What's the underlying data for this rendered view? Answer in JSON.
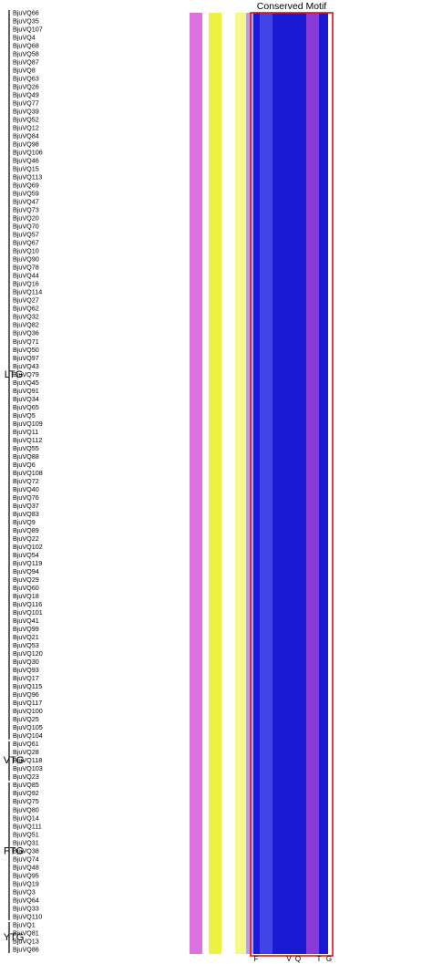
{
  "title": "Conserved Motif",
  "groups": [
    {
      "label": "LTG",
      "members": [
        "BjuVQ66",
        "BjuVQ35",
        "BjuVQ107",
        "BjuVQ4",
        "BjuVQ68",
        "BjuVQ58",
        "BjuVQ87",
        "BjuVQ8",
        "BjuVQ63",
        "BjuVQ26",
        "BjuVQ49",
        "BjuVQ77",
        "BjuVQ39",
        "BjuVQ52",
        "BjuVQ12",
        "BjuVQ84",
        "BjuVQ98",
        "BjuVQ106",
        "BjuVQ46",
        "BjuVQ15",
        "BjuVQ113",
        "BjuVQ69",
        "BjuVQ59",
        "BjuVQ47",
        "BjuVQ73",
        "BjuVQ20",
        "BjuVQ70",
        "BjuVQ57",
        "BjuVQ67",
        "BjuVQ10",
        "BjuVQ90",
        "BjuVQ78",
        "BjuVQ44",
        "BjuVQ16",
        "BjuVQ114",
        "BjuVQ27",
        "BjuVQ62",
        "BjuVQ32",
        "BjuVQ82",
        "BjuVQ36",
        "BjuVQ71",
        "BjuVQ50",
        "BjuVQ97",
        "BjuVQ43",
        "BjuVQ79",
        "BjuVQ45",
        "BjuVQ91",
        "BjuVQ34",
        "BjuVQ65",
        "BjuVQ5",
        "BjuVQ109",
        "BjuVQ11",
        "BjuVQ112",
        "BjuVQ55",
        "BjuVQ88",
        "BjuVQ6",
        "BjuVQ108",
        "BjuVQ72",
        "BjuVQ40",
        "BjuVQ76",
        "BjuVQ37",
        "BjuVQ83",
        "BjuVQ9",
        "BjuVQ89",
        "BjuVQ22",
        "BjuVQ102",
        "BjuVQ54",
        "BjuVQ119",
        "BjuVQ94",
        "BjuVQ29",
        "BjuVQ60",
        "BjuVQ18",
        "BjuVQ116",
        "BjuVQ101",
        "BjuVQ41",
        "BjuVQ99",
        "BjuVQ21",
        "BjuVQ53",
        "BjuVQ120",
        "BjuVQ30",
        "BjuVQ93",
        "BjuVQ17",
        "BjuVQ115",
        "BjuVQ96",
        "BjuVQ117",
        "BjuVQ100",
        "BjuVQ25",
        "BjuVQ105",
        "BjuVQ104"
      ]
    },
    {
      "label": "VTG",
      "members": [
        "BjuVQ61",
        "BjuVQ28",
        "BjuVQ118",
        "BjuVQ103",
        "BjuVQ23"
      ]
    },
    {
      "label": "FTG",
      "members": [
        "BjuVQ85",
        "BjuVQ92",
        "BjuVQ75",
        "BjuVQ80",
        "BjuVQ14",
        "BjuVQ111",
        "BjuVQ51",
        "BjuVQ31",
        "BjuVQ38",
        "BjuVQ74",
        "BjuVQ48",
        "BjuVQ95",
        "BjuVQ19",
        "BjuVQ3",
        "BjuVQ64",
        "BjuVQ33",
        "BjuVQ110"
      ]
    },
    {
      "label": "YTG",
      "members": [
        "BjuVQ1",
        "BjuVQ81",
        "BjuVQ13",
        "BjuVQ86"
      ]
    }
  ],
  "motif_consensus": [
    "F",
    "V",
    "Q",
    "T",
    "G"
  ]
}
